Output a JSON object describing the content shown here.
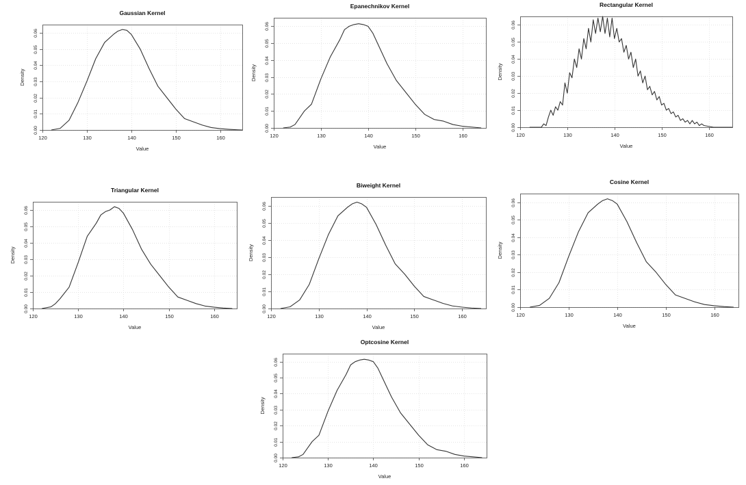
{
  "chart_data": [
    {
      "type": "line",
      "title": "Gaussian Kernel",
      "xlabel": "Value",
      "ylabel": "Density",
      "xlim": [
        120,
        165
      ],
      "ylim": [
        0,
        0.065
      ],
      "xticks": [
        120,
        130,
        140,
        150,
        160
      ],
      "yticks": [
        0,
        0.01,
        0.02,
        0.03,
        0.04,
        0.05,
        0.06
      ],
      "ytick_labels": [
        "0.00",
        "0.01",
        "0.02",
        "0.03",
        "0.04",
        "0.05",
        "0.06"
      ],
      "grid": true,
      "series": [
        {
          "x": [
            122,
            124,
            126,
            128,
            130,
            132,
            134,
            136,
            137,
            138,
            139,
            140,
            142,
            144,
            146,
            148,
            150,
            152,
            154,
            156,
            158,
            160,
            162,
            164,
            165
          ],
          "y": [
            0.0,
            0.001,
            0.006,
            0.017,
            0.03,
            0.044,
            0.054,
            0.059,
            0.061,
            0.062,
            0.0615,
            0.059,
            0.05,
            0.038,
            0.027,
            0.02,
            0.013,
            0.007,
            0.005,
            0.003,
            0.0015,
            0.0008,
            0.0004,
            0.0001,
            0.0
          ]
        }
      ]
    },
    {
      "type": "line",
      "title": "Epanechnikov Kernel",
      "xlabel": "Value",
      "ylabel": "Density",
      "xlim": [
        120,
        165
      ],
      "ylim": [
        0,
        0.065
      ],
      "xticks": [
        120,
        130,
        140,
        150,
        160
      ],
      "yticks": [
        0,
        0.01,
        0.02,
        0.03,
        0.04,
        0.05,
        0.06
      ],
      "ytick_labels": [
        "0.00",
        "0.01",
        "0.02",
        "0.03",
        "0.04",
        "0.05",
        "0.06"
      ],
      "grid": true,
      "series": [
        {
          "x": [
            122,
            123.5,
            124.5,
            125.5,
            126.5,
            128,
            130,
            132,
            134,
            135,
            136,
            137,
            138,
            139,
            140,
            141,
            142,
            144,
            146,
            148,
            150,
            152,
            154,
            156,
            158,
            160,
            162,
            164
          ],
          "y": [
            0.0,
            0.0005,
            0.002,
            0.006,
            0.01,
            0.014,
            0.029,
            0.042,
            0.052,
            0.058,
            0.06,
            0.061,
            0.0615,
            0.061,
            0.06,
            0.056,
            0.05,
            0.038,
            0.028,
            0.021,
            0.014,
            0.008,
            0.005,
            0.004,
            0.002,
            0.001,
            0.0005,
            0.0
          ]
        }
      ]
    },
    {
      "type": "line",
      "title": "Rectangular Kernel",
      "xlabel": "Value",
      "ylabel": "Density",
      "xlim": [
        120,
        165
      ],
      "ylim": [
        0,
        0.065
      ],
      "xticks": [
        120,
        130,
        140,
        150,
        160
      ],
      "yticks": [
        0,
        0.01,
        0.02,
        0.03,
        0.04,
        0.05,
        0.06
      ],
      "ytick_labels": [
        "0.00",
        "0.01",
        "0.02",
        "0.03",
        "0.04",
        "0.05",
        "0.06"
      ],
      "grid": true,
      "series": [
        {
          "x": [
            122,
            124,
            124.5,
            125,
            125.5,
            126,
            126.5,
            127,
            127.5,
            128,
            128.5,
            129,
            129.5,
            130,
            130.5,
            131,
            131.5,
            132,
            132.5,
            133,
            133.5,
            134,
            134.5,
            135,
            135.5,
            136,
            136.5,
            137,
            137.5,
            138,
            138.5,
            139,
            139.5,
            140,
            140.5,
            141,
            141.5,
            142,
            142.5,
            143,
            143.5,
            144,
            144.5,
            145,
            145.5,
            146,
            146.5,
            147,
            147.5,
            148,
            148.5,
            149,
            149.5,
            150,
            150.5,
            151,
            151.5,
            152,
            152.5,
            153,
            153.5,
            154,
            154.5,
            155,
            155.5,
            156,
            156.5,
            157,
            157.5,
            158,
            158.5,
            159,
            160,
            161,
            162,
            163,
            164,
            165
          ],
          "y": [
            0.0,
            0.0,
            0.0,
            0.002,
            0.001,
            0.006,
            0.01,
            0.007,
            0.012,
            0.01,
            0.015,
            0.013,
            0.026,
            0.02,
            0.032,
            0.029,
            0.04,
            0.035,
            0.046,
            0.04,
            0.052,
            0.046,
            0.058,
            0.05,
            0.063,
            0.055,
            0.064,
            0.056,
            0.065,
            0.055,
            0.064,
            0.053,
            0.064,
            0.052,
            0.058,
            0.05,
            0.052,
            0.044,
            0.048,
            0.04,
            0.044,
            0.035,
            0.04,
            0.03,
            0.033,
            0.026,
            0.03,
            0.022,
            0.024,
            0.019,
            0.021,
            0.016,
            0.018,
            0.013,
            0.014,
            0.01,
            0.011,
            0.008,
            0.009,
            0.006,
            0.007,
            0.004,
            0.005,
            0.003,
            0.004,
            0.002,
            0.004,
            0.002,
            0.003,
            0.001,
            0.002,
            0.001,
            0.0005,
            0.0,
            0.0,
            0.0,
            0.0,
            0.0
          ]
        }
      ]
    },
    {
      "type": "line",
      "title": "Triangular Kernel",
      "xlabel": "Value",
      "ylabel": "Density",
      "xlim": [
        120,
        165
      ],
      "ylim": [
        0,
        0.065
      ],
      "xticks": [
        120,
        130,
        140,
        150,
        160
      ],
      "yticks": [
        0,
        0.01,
        0.02,
        0.03,
        0.04,
        0.05,
        0.06
      ],
      "ytick_labels": [
        "0.00",
        "0.01",
        "0.02",
        "0.03",
        "0.04",
        "0.05",
        "0.06"
      ],
      "grid": true,
      "series": [
        {
          "x": [
            122,
            124,
            125,
            126,
            128,
            130,
            131,
            132,
            134,
            135,
            136,
            137,
            138,
            139,
            140,
            142,
            144,
            146,
            148,
            150,
            152,
            154,
            156,
            158,
            160,
            162,
            164
          ],
          "y": [
            0.0,
            0.001,
            0.003,
            0.006,
            0.013,
            0.028,
            0.036,
            0.044,
            0.052,
            0.057,
            0.059,
            0.06,
            0.062,
            0.061,
            0.058,
            0.048,
            0.036,
            0.027,
            0.02,
            0.013,
            0.007,
            0.005,
            0.003,
            0.0015,
            0.0008,
            0.0003,
            0.0
          ]
        }
      ]
    },
    {
      "type": "line",
      "title": "Biweight Kernel",
      "xlabel": "Value",
      "ylabel": "Density",
      "xlim": [
        120,
        165
      ],
      "ylim": [
        0,
        0.065
      ],
      "xticks": [
        120,
        130,
        140,
        150,
        160
      ],
      "yticks": [
        0,
        0.01,
        0.02,
        0.03,
        0.04,
        0.05,
        0.06
      ],
      "ytick_labels": [
        "0.00",
        "0.01",
        "0.02",
        "0.03",
        "0.04",
        "0.05",
        "0.06"
      ],
      "grid": true,
      "series": [
        {
          "x": [
            122,
            124,
            126,
            128,
            130,
            132,
            134,
            136,
            137,
            138,
            139,
            140,
            142,
            144,
            146,
            148,
            150,
            152,
            154,
            156,
            158,
            160,
            162,
            164
          ],
          "y": [
            0.0,
            0.001,
            0.005,
            0.014,
            0.029,
            0.043,
            0.054,
            0.059,
            0.061,
            0.062,
            0.061,
            0.059,
            0.049,
            0.037,
            0.026,
            0.02,
            0.013,
            0.007,
            0.005,
            0.003,
            0.0015,
            0.0008,
            0.0003,
            0.0
          ]
        }
      ]
    },
    {
      "type": "line",
      "title": "Cosine Kernel",
      "xlabel": "Value",
      "ylabel": "Density",
      "xlim": [
        120,
        165
      ],
      "ylim": [
        0,
        0.065
      ],
      "xticks": [
        120,
        130,
        140,
        150,
        160
      ],
      "yticks": [
        0,
        0.01,
        0.02,
        0.03,
        0.04,
        0.05,
        0.06
      ],
      "ytick_labels": [
        "0.00",
        "0.01",
        "0.02",
        "0.03",
        "0.04",
        "0.05",
        "0.06"
      ],
      "grid": true,
      "series": [
        {
          "x": [
            122,
            124,
            126,
            128,
            130,
            132,
            134,
            136,
            137,
            138,
            139,
            140,
            142,
            144,
            146,
            148,
            150,
            152,
            154,
            156,
            158,
            160,
            162,
            164
          ],
          "y": [
            0.0,
            0.001,
            0.005,
            0.014,
            0.029,
            0.043,
            0.054,
            0.059,
            0.061,
            0.062,
            0.061,
            0.059,
            0.049,
            0.037,
            0.026,
            0.02,
            0.013,
            0.007,
            0.005,
            0.003,
            0.0015,
            0.0008,
            0.0003,
            0.0
          ]
        }
      ]
    },
    {
      "type": "line",
      "title": "Optcosine Kernel",
      "xlabel": "Value",
      "ylabel": "Density",
      "xlim": [
        120,
        165
      ],
      "ylim": [
        0,
        0.065
      ],
      "xticks": [
        120,
        130,
        140,
        150,
        160
      ],
      "yticks": [
        0,
        0.01,
        0.02,
        0.03,
        0.04,
        0.05,
        0.06
      ],
      "ytick_labels": [
        "0.00",
        "0.01",
        "0.02",
        "0.03",
        "0.04",
        "0.05",
        "0.06"
      ],
      "grid": true,
      "series": [
        {
          "x": [
            122,
            123.5,
            124.5,
            125.5,
            126.5,
            128,
            130,
            132,
            134,
            135,
            136,
            137,
            138,
            139,
            140,
            141,
            142,
            144,
            146,
            148,
            150,
            152,
            154,
            156,
            158,
            160,
            162,
            164
          ],
          "y": [
            0.0,
            0.0005,
            0.002,
            0.006,
            0.01,
            0.014,
            0.029,
            0.042,
            0.052,
            0.058,
            0.06,
            0.061,
            0.0615,
            0.061,
            0.06,
            0.056,
            0.05,
            0.038,
            0.028,
            0.021,
            0.014,
            0.008,
            0.005,
            0.004,
            0.002,
            0.001,
            0.0005,
            0.0
          ]
        }
      ]
    }
  ]
}
